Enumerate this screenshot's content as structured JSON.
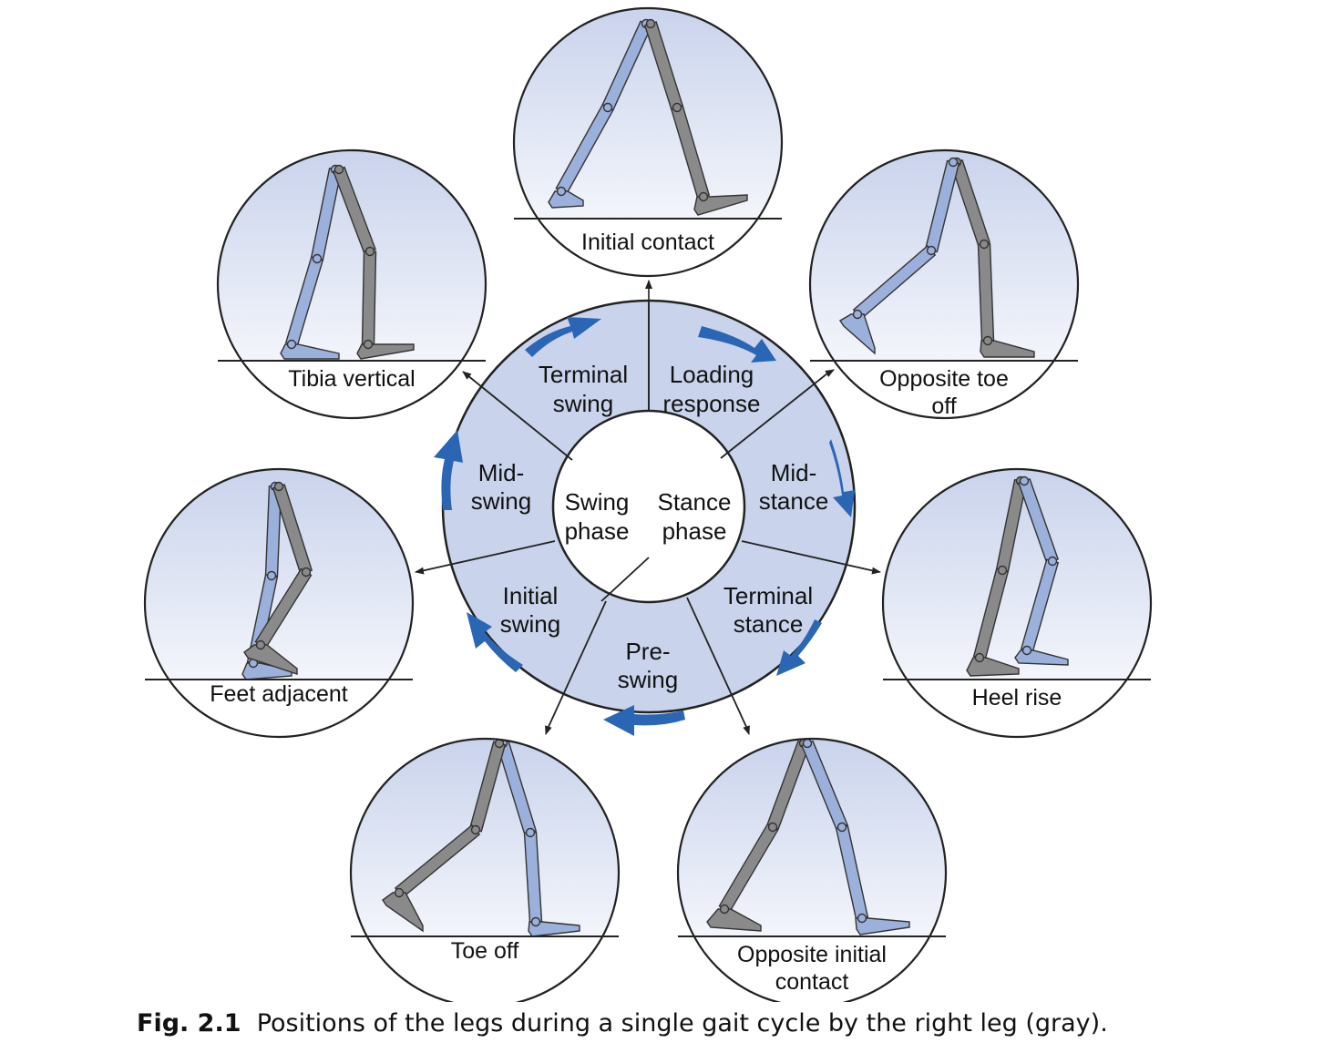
{
  "caption": {
    "number": "Fig. 2.1",
    "text": "Positions of the legs during a single gait cycle by the right leg (gray)."
  },
  "center": {
    "swing": [
      "Swing",
      "phase"
    ],
    "stance": [
      "Stance",
      "phase"
    ]
  },
  "phases": [
    {
      "id": "loading-response",
      "lines": [
        "Loading",
        "response"
      ]
    },
    {
      "id": "mid-stance",
      "lines": [
        "Mid-",
        "stance"
      ]
    },
    {
      "id": "terminal-stance",
      "lines": [
        "Terminal",
        "stance"
      ]
    },
    {
      "id": "pre-swing",
      "lines": [
        "Pre-",
        "swing"
      ]
    },
    {
      "id": "initial-swing",
      "lines": [
        "Initial",
        "swing"
      ]
    },
    {
      "id": "mid-swing",
      "lines": [
        "Mid-",
        "swing"
      ]
    },
    {
      "id": "terminal-swing",
      "lines": [
        "Terminal",
        "swing"
      ]
    }
  ],
  "events": [
    {
      "id": "initial-contact",
      "lines": [
        "Initial contact"
      ]
    },
    {
      "id": "opposite-toe-off",
      "lines": [
        "Opposite toe",
        "off"
      ]
    },
    {
      "id": "heel-rise",
      "lines": [
        "Heel rise"
      ]
    },
    {
      "id": "opposite-initial-contact",
      "lines": [
        "Opposite initial",
        "contact"
      ]
    },
    {
      "id": "toe-off",
      "lines": [
        "Toe off"
      ]
    },
    {
      "id": "feet-adjacent",
      "lines": [
        "Feet adjacent"
      ]
    },
    {
      "id": "tibia-vertical",
      "lines": [
        "Tibia vertical"
      ]
    }
  ],
  "colors": {
    "right_leg": "#8a8a8a",
    "left_leg": "#9cb0dc",
    "ring": "#c9d4ec",
    "arrow": "#2a66b4"
  }
}
